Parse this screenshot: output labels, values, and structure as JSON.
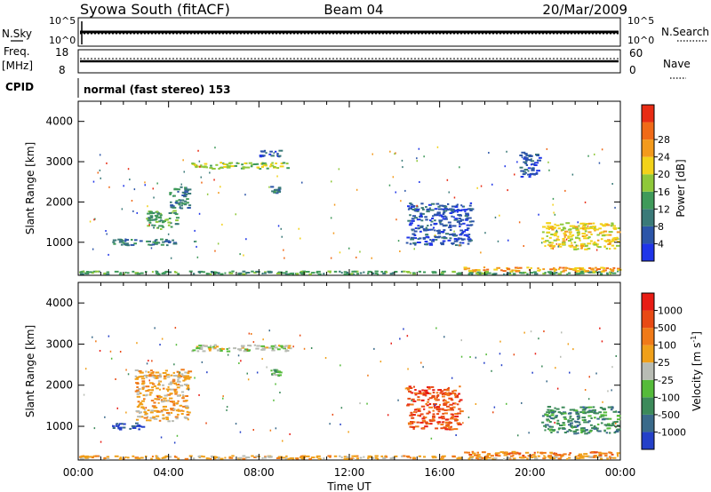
{
  "header": {
    "station": "Syowa South (fitACF)",
    "beam": "Beam 04",
    "date": "20/Mar/2009"
  },
  "strips": {
    "nsky_label": "N.Sky",
    "nsky_ticks": [
      "10^5",
      "10^0"
    ],
    "nsearch_label": "N.Search",
    "nsearch_ticks": [
      "10^5",
      "10^0"
    ],
    "freq_label": "Freq.",
    "freq_unit": "[MHz]",
    "freq_ticks": [
      "18",
      "8"
    ],
    "nave_label": "Nave",
    "nave_ticks": [
      "60",
      "0"
    ],
    "cpid_label": "CPID",
    "cpid_text": "normal (fast stereo) 153"
  },
  "chart_data": [
    {
      "type": "heatmap",
      "panel": "power",
      "ylabel": "Slant Range [km]",
      "ylim": [
        180,
        4500
      ],
      "yticks": [
        1000,
        2000,
        3000,
        4000
      ],
      "xlim": [
        "00:00",
        "24:00"
      ],
      "colorbar": {
        "label": "Power [dB]",
        "ticks": [
          "4",
          "8",
          "12",
          "16",
          "20",
          "24",
          "28"
        ],
        "colors": [
          "#1f35e8",
          "#2c55a8",
          "#3a7a78",
          "#3f9a5a",
          "#8fc83a",
          "#f2d21a",
          "#f39a1c",
          "#f06a18",
          "#e82c14"
        ]
      },
      "regions": [
        {
          "t0": 0.0,
          "t1": 24.0,
          "r0": 180,
          "r1": 300,
          "level": 3
        },
        {
          "t0": 1.5,
          "t1": 4.5,
          "r0": 900,
          "r1": 1100,
          "level": 2
        },
        {
          "t0": 3.0,
          "t1": 4.5,
          "r0": 1300,
          "r1": 1800,
          "level": 3
        },
        {
          "t0": 4.0,
          "t1": 5.0,
          "r0": 1800,
          "r1": 2400,
          "level": 2
        },
        {
          "t0": 5.0,
          "t1": 9.5,
          "r0": 2800,
          "r1": 3000,
          "level": 4
        },
        {
          "t0": 8.0,
          "t1": 9.0,
          "r0": 3100,
          "r1": 3300,
          "level": 1
        },
        {
          "t0": 8.5,
          "t1": 9.0,
          "r0": 2200,
          "r1": 2400,
          "level": 2
        },
        {
          "t0": 14.5,
          "t1": 17.5,
          "r0": 900,
          "r1": 2000,
          "level": 1
        },
        {
          "t0": 17.0,
          "t1": 24.0,
          "r0": 250,
          "r1": 400,
          "level": 6
        },
        {
          "t0": 19.5,
          "t1": 20.5,
          "r0": 2600,
          "r1": 3300,
          "level": 1
        },
        {
          "t0": 20.5,
          "t1": 24.0,
          "r0": 800,
          "r1": 1500,
          "level": 5
        }
      ]
    },
    {
      "type": "heatmap",
      "panel": "velocity",
      "ylabel": "Slant Range [km]",
      "ylim": [
        180,
        4500
      ],
      "yticks": [
        1000,
        2000,
        3000,
        4000
      ],
      "xlim": [
        "00:00",
        "24:00"
      ],
      "xticks": [
        "00:00",
        "04:00",
        "08:00",
        "12:00",
        "16:00",
        "20:00",
        "00:00"
      ],
      "xlabel": "Time UT",
      "colorbar": {
        "label": "Velocity [m s",
        "label_sup": "-1",
        "label_tail": "]",
        "ticks": [
          "1000",
          "500",
          "100",
          "25",
          "-25",
          "-100",
          "-500",
          "-1000"
        ],
        "colors": [
          "#2440c8",
          "#3a6a8a",
          "#3c8a5a",
          "#55bb3a",
          "#b8bcb4",
          "#f0a01a",
          "#f07a18",
          "#e84a14",
          "#e81c14"
        ]
      },
      "regions": [
        {
          "t0": 0.0,
          "t1": 24.0,
          "r0": 180,
          "r1": 300,
          "level": 5
        },
        {
          "t0": 1.5,
          "t1": 3.0,
          "r0": 900,
          "r1": 1100,
          "level": 0
        },
        {
          "t0": 2.5,
          "t1": 5.0,
          "r0": 1100,
          "r1": 2400,
          "level": 5
        },
        {
          "t0": 5.0,
          "t1": 9.5,
          "r0": 2800,
          "r1": 3000,
          "level": 4
        },
        {
          "t0": 8.5,
          "t1": 9.0,
          "r0": 2200,
          "r1": 2400,
          "level": 3
        },
        {
          "t0": 14.5,
          "t1": 17.0,
          "r0": 900,
          "r1": 2000,
          "level": 7
        },
        {
          "t0": 17.0,
          "t1": 24.0,
          "r0": 250,
          "r1": 400,
          "level": 6
        },
        {
          "t0": 20.5,
          "t1": 24.0,
          "r0": 800,
          "r1": 1500,
          "level": 2
        }
      ]
    }
  ]
}
